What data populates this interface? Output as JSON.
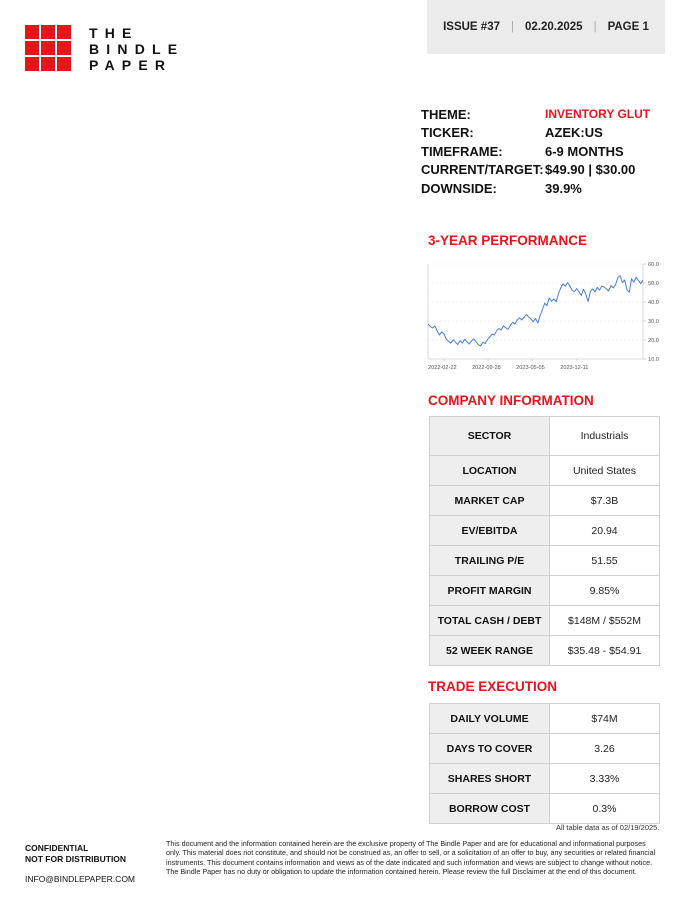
{
  "brand": {
    "logo_lines": [
      "THE",
      "BINDLE",
      "PAPER"
    ],
    "accent_color": "#e8141b"
  },
  "issue_bar": {
    "issue": "ISSUE #37",
    "date": "02.20.2025",
    "page": "PAGE 1"
  },
  "summary": [
    {
      "label": "THEME:",
      "value": "INVENTORY GLUT"
    },
    {
      "label": "TICKER:",
      "value": "AZEK:US"
    },
    {
      "label": "TIMEFRAME:",
      "value": "6-9 MONTHS"
    },
    {
      "label": "CURRENT/TARGET:",
      "value": "$49.90 | $30.00"
    },
    {
      "label": "DOWNSIDE:",
      "value": "39.9%"
    }
  ],
  "performance": {
    "title": "3-YEAR PERFORMANCE"
  },
  "chart_data": {
    "type": "line",
    "title": "3-YEAR PERFORMANCE",
    "xlabel": "",
    "ylabel": "",
    "x_tick_labels": [
      "2022-02-22",
      "2022-09-28",
      "2023-05-05",
      "2023-12-11"
    ],
    "y_tick_labels": [
      "60.0",
      "50.0",
      "40.0",
      "30.0",
      "20.0",
      "10.0"
    ],
    "ylim": [
      10,
      60
    ],
    "grid": true,
    "line_color": "#4a7fd4",
    "series": [
      {
        "values": [
          28.5,
          27.1,
          26.3,
          27.4,
          24.8,
          22.6,
          24.3,
          23.1,
          20.4,
          19.3,
          18.4,
          20.2,
          18.9,
          17.6,
          19.7,
          18.3,
          20.4,
          19.1,
          17.9,
          19.5,
          20.6,
          19.1,
          17.6,
          16.9,
          18.8,
          18.1,
          20.3,
          21.5,
          23.2,
          22.6,
          24.9,
          26.1,
          25.2,
          27.5,
          26.4,
          25.6,
          27.8,
          29.3,
          28.4,
          30.6,
          31.7,
          30.6,
          31.9,
          33.4,
          32.2,
          31.1,
          29.6,
          31.4,
          28.9,
          32.8,
          35.8,
          39.4,
          38.1,
          42.1,
          40.4,
          41.6,
          40.1,
          44.2,
          47.3,
          49.6,
          48.3,
          50.2,
          48.5,
          46.2,
          45.4,
          47.1,
          45.3,
          43.4,
          46.8,
          44.1,
          40.2,
          45.6,
          46.9,
          45.3,
          47.7,
          46.2,
          48.4,
          47.9,
          46.9,
          45.8,
          48.6,
          47.4,
          49.1,
          52.8,
          53.9,
          50.2,
          51.6,
          46.4,
          45.1,
          52.2,
          50.4,
          53.1,
          51.3,
          49.7,
          51.4
        ]
      }
    ]
  },
  "company_info": {
    "title": "COMPANY INFORMATION",
    "rows": [
      {
        "label": "SECTOR",
        "value": "Industrials"
      },
      {
        "label": "LOCATION",
        "value": "United States"
      },
      {
        "label": "MARKET CAP",
        "value": "$7.3B"
      },
      {
        "label": "EV/EBITDA",
        "value": "20.94"
      },
      {
        "label": "TRAILING P/E",
        "value": "51.55"
      },
      {
        "label": "PROFIT MARGIN",
        "value": "9.85%"
      },
      {
        "label": "TOTAL CASH / DEBT",
        "value": "$148M / $552M"
      },
      {
        "label": "52 WEEK RANGE",
        "value": "$35.48 - $54.91"
      }
    ]
  },
  "trade_execution": {
    "title": "TRADE EXECUTION",
    "rows": [
      {
        "label": "DAILY VOLUME",
        "value": "$74M"
      },
      {
        "label": "DAYS TO COVER",
        "value": "3.26"
      },
      {
        "label": "SHARES SHORT",
        "value": "3.33%"
      },
      {
        "label": "BORROW COST",
        "value": "0.3%"
      }
    ]
  },
  "table_note": "All table data  as of 02/19/2025.",
  "footer": {
    "confidential": "CONFIDENTIAL",
    "distribution": "NOT FOR DISTRIBUTION",
    "email": "INFO@BINDLEPAPER.COM",
    "disclaimer": "This document and the information contained herein are the exclusive property of The Bindle Paper and are for educational and informational purposes only. This material does not constitute, and should not be construed as, an offer to sell, or a solicitation of an offer to buy, any securities or related financial instruments. This document contains information and views as of the date indicated and such information and views are subject to change without notice. The Bindle Paper has no duty or obligation to update the information contained herein. Please review the full Disclaimer at the end of this document."
  }
}
